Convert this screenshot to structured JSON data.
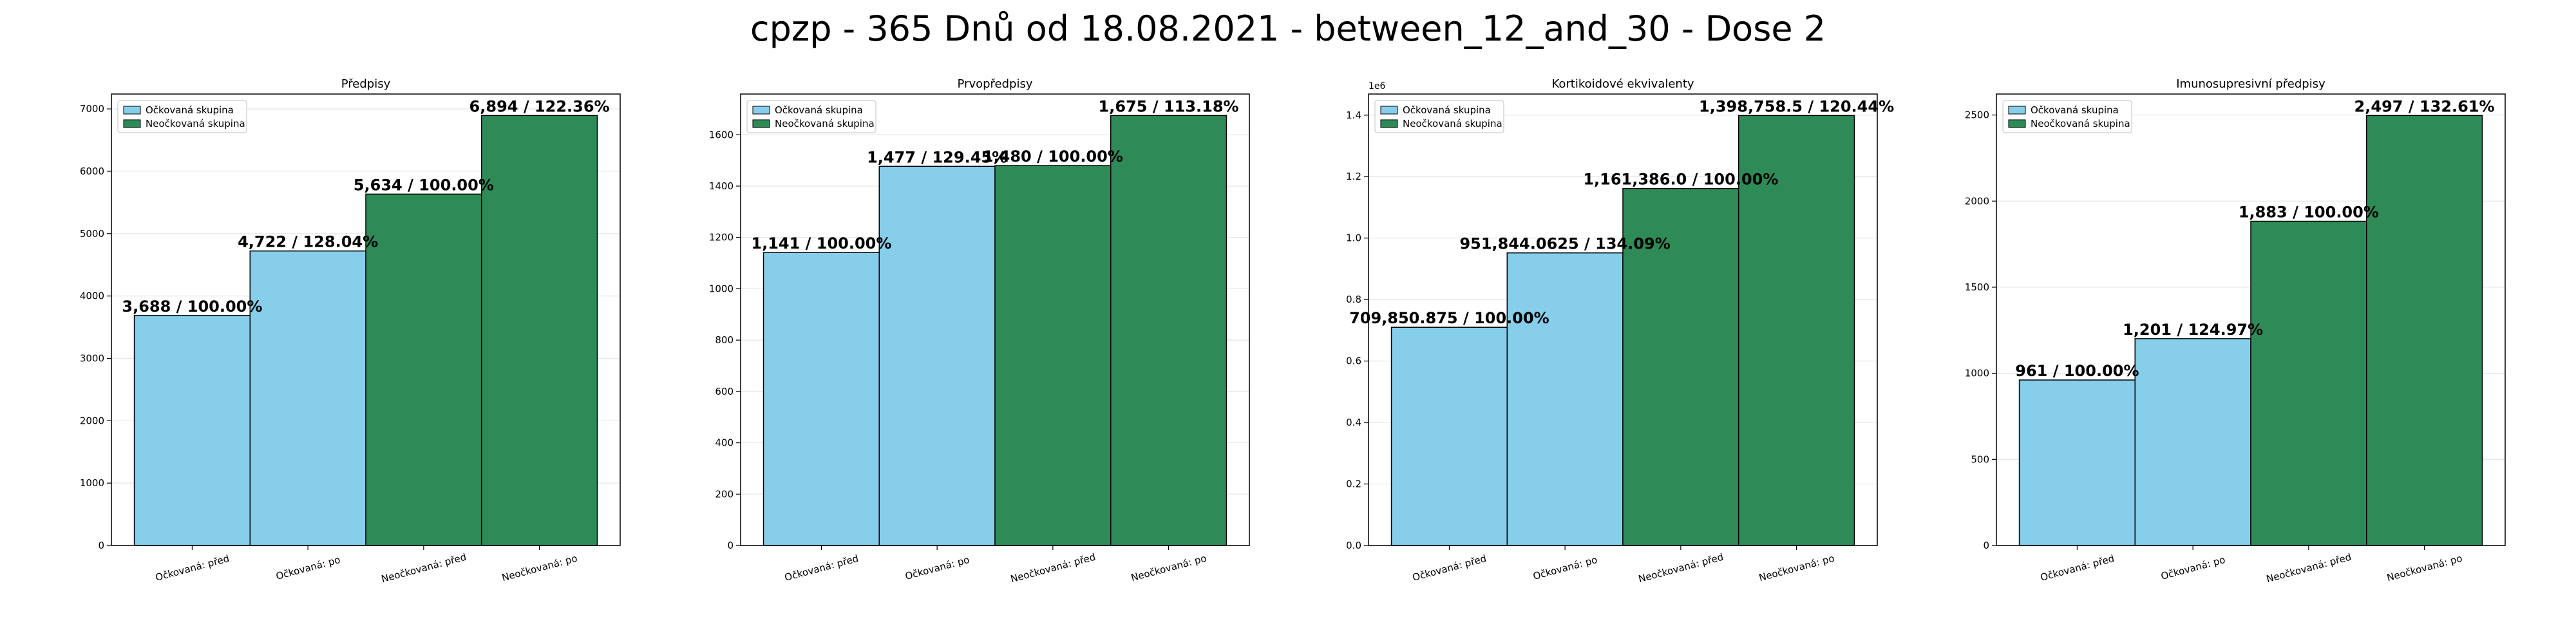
{
  "figure": {
    "title": "cpzp - 365 Dnů od 18.08.2021 - between_12_and_30 - Dose 2"
  },
  "legend": [
    "Očkovaná skupina",
    "Neočkovaná skupina"
  ],
  "colors": {
    "vaccinated": "#87ceeb",
    "unvaccinated": "#2e8b57",
    "edge": "#000000",
    "grid": "#e6e6e6"
  },
  "chart_data": [
    {
      "type": "bar",
      "title": "Předpisy",
      "categories": [
        "Očkovaná: před",
        "Očkovaná: po",
        "Neočkovaná: před",
        "Neočkovaná: po"
      ],
      "values": [
        3688,
        4722,
        5634,
        6894
      ],
      "labels": [
        "3,688 / 100.00%",
        "4,722 / 128.04%",
        "5,634 / 100.00%",
        "6,894 / 122.36%"
      ],
      "groups": [
        "vaccinated",
        "vaccinated",
        "unvaccinated",
        "unvaccinated"
      ],
      "ylim": [
        0,
        7238.7
      ],
      "yticks": [
        0,
        1000,
        2000,
        3000,
        4000,
        5000,
        6000,
        7000
      ],
      "ytick_labels": [
        "0",
        "1000",
        "2000",
        "3000",
        "4000",
        "5000",
        "6000",
        "7000"
      ],
      "exponent": "",
      "legend_position": "upper-left",
      "grid": true
    },
    {
      "type": "bar",
      "title": "Prvopředpisy",
      "categories": [
        "Očkovaná: před",
        "Očkovaná: po",
        "Neočkovaná: před",
        "Neočkovaná: po"
      ],
      "values": [
        1141,
        1477,
        1480,
        1675
      ],
      "labels": [
        "1,141 / 100.00%",
        "1,477 / 129.45%",
        "1,480 / 100.00%",
        "1,675 / 113.18%"
      ],
      "groups": [
        "vaccinated",
        "vaccinated",
        "unvaccinated",
        "unvaccinated"
      ],
      "ylim": [
        0,
        1758.75
      ],
      "yticks": [
        0,
        200,
        400,
        600,
        800,
        1000,
        1200,
        1400,
        1600
      ],
      "ytick_labels": [
        "0",
        "200",
        "400",
        "600",
        "800",
        "1000",
        "1200",
        "1400",
        "1600"
      ],
      "exponent": "",
      "legend_position": "upper-left",
      "grid": true
    },
    {
      "type": "bar",
      "title": "Kortikoidové ekvivalenty",
      "categories": [
        "Očkovaná: před",
        "Očkovaná: po",
        "Neočkovaná: před",
        "Neočkovaná: po"
      ],
      "values": [
        709850.875,
        951844.0625,
        1161386.0,
        1398758.5
      ],
      "labels": [
        "709,850.875 / 100.00%",
        "951,844.0625 / 134.09%",
        "1,161,386.0 / 100.00%",
        "1,398,758.5 / 120.44%"
      ],
      "groups": [
        "vaccinated",
        "vaccinated",
        "unvaccinated",
        "unvaccinated"
      ],
      "ylim": [
        0,
        1468696.4
      ],
      "yticks": [
        0,
        200000,
        400000,
        600000,
        800000,
        1000000,
        1200000,
        1400000
      ],
      "ytick_labels": [
        "0.0",
        "0.2",
        "0.4",
        "0.6",
        "0.8",
        "1.0",
        "1.2",
        "1.4"
      ],
      "exponent": "1e6",
      "legend_position": "upper-left",
      "grid": true
    },
    {
      "type": "bar",
      "title": "Imunosupresivní předpisy",
      "categories": [
        "Očkovaná: před",
        "Očkovaná: po",
        "Neočkovaná: před",
        "Neočkovaná: po"
      ],
      "values": [
        961,
        1201,
        1883,
        2497
      ],
      "labels": [
        "961 / 100.00%",
        "1,201 / 124.97%",
        "1,883 / 100.00%",
        "2,497 / 132.61%"
      ],
      "groups": [
        "vaccinated",
        "vaccinated",
        "unvaccinated",
        "unvaccinated"
      ],
      "ylim": [
        0,
        2621.85
      ],
      "yticks": [
        0,
        500,
        1000,
        1500,
        2000,
        2500
      ],
      "ytick_labels": [
        "0",
        "500",
        "1000",
        "1500",
        "2000",
        "2500"
      ],
      "exponent": "",
      "legend_position": "upper-left",
      "grid": true
    }
  ]
}
